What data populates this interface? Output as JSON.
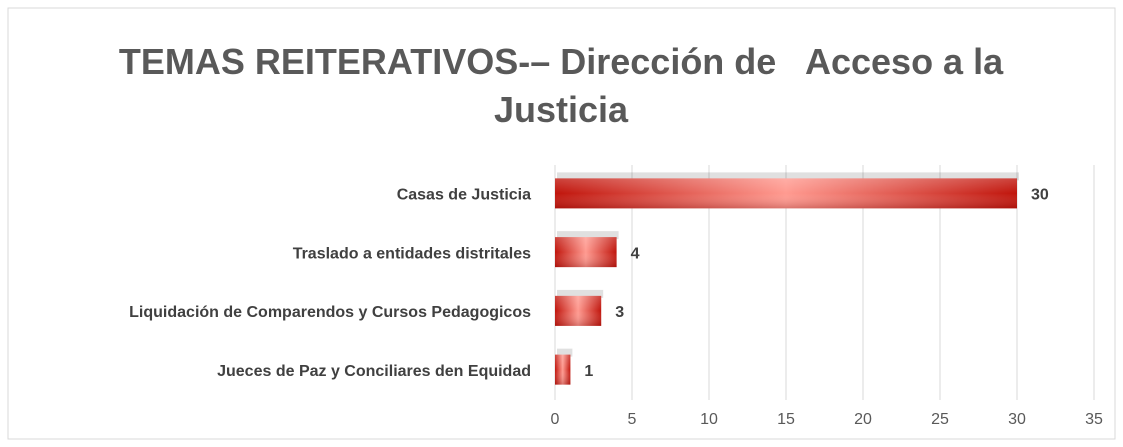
{
  "chart_data": {
    "type": "barh",
    "title": "TEMAS REITERATIVOS-– Dirección de   Acceso a la Justicia",
    "categories": [
      "Casas de Justicia",
      "Traslado a entidades distritales",
      "Liquidación de Comparendos y Cursos Pedagogicos",
      "Jueces de  Paz y Conciliares den Equidad"
    ],
    "values": [
      30,
      4,
      3,
      1
    ],
    "color": "#e0241b",
    "xlim": [
      0,
      35
    ],
    "xticks": [
      0,
      5,
      10,
      15,
      20,
      25,
      30,
      35
    ],
    "grid": true
  }
}
